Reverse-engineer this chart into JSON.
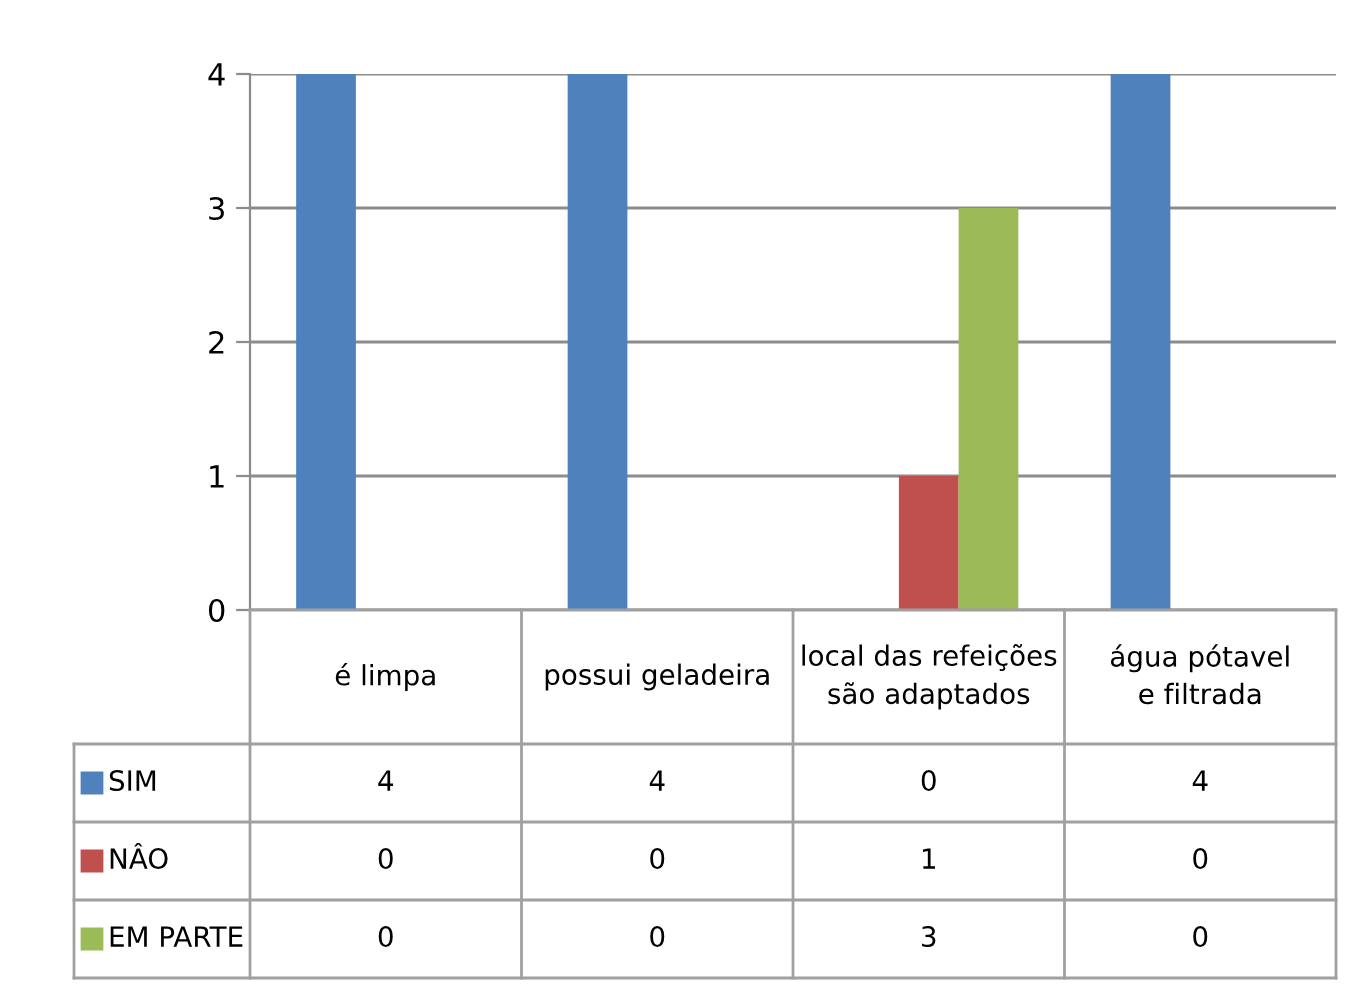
{
  "chart_data": {
    "type": "bar",
    "categories": [
      "é limpa",
      "possui geladeira",
      "local das refeições são adaptados",
      "água pótavel e filtrada"
    ],
    "series": [
      {
        "name": "SIM",
        "color": "#4f81bd",
        "values": [
          4,
          4,
          0,
          4
        ]
      },
      {
        "name": "NÂO",
        "color": "#c0504d",
        "values": [
          0,
          0,
          1,
          0
        ]
      },
      {
        "name": "EM PARTE",
        "color": "#9bbb59",
        "values": [
          0,
          0,
          3,
          0
        ]
      }
    ],
    "ylim": [
      0,
      4
    ],
    "yticks": [
      0,
      1,
      2,
      3,
      4
    ],
    "grid": "y",
    "data_labels": true,
    "legend": "bottom"
  }
}
